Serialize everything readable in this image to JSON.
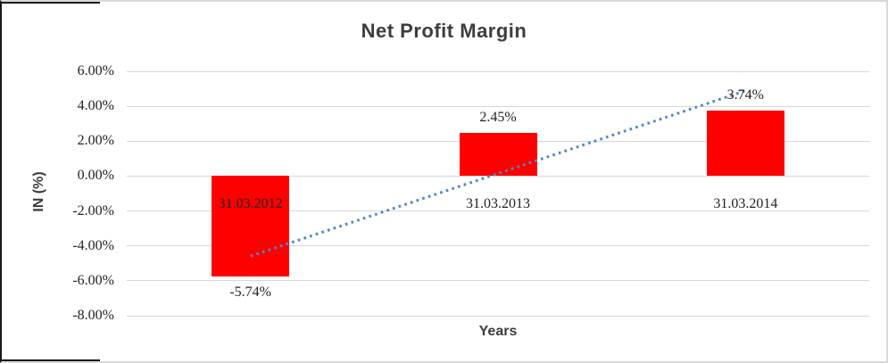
{
  "frame": {
    "background": "#ffffff",
    "border_color": "#d9d9d9",
    "left_edge_color": "#1a1a1a"
  },
  "chart_data": {
    "type": "bar",
    "title": "Net Profit Margin",
    "xlabel": "Years",
    "ylabel": "IN (%)",
    "categories": [
      "31.03.2012",
      "31.03.2013",
      "31.03.2014"
    ],
    "values": [
      -5.74,
      2.45,
      3.74
    ],
    "value_labels": [
      "-5.74%",
      "2.45%",
      "3.74%"
    ],
    "ylim": [
      -8,
      6
    ],
    "yticks": [
      {
        "label": "6.00%",
        "value": 6
      },
      {
        "label": "4.00%",
        "value": 4
      },
      {
        "label": "2.00%",
        "value": 2
      },
      {
        "label": "0.00%",
        "value": 0
      },
      {
        "label": "-2.00%",
        "value": -2
      },
      {
        "label": "-4.00%",
        "value": -4
      },
      {
        "label": "-6.00%",
        "value": -6
      },
      {
        "label": "-8.00%",
        "value": -8
      }
    ],
    "grid": true,
    "legend": false,
    "bar_color": "#ff0000",
    "label_color": "#212121",
    "title_color": "#3d3d3d",
    "gridline_color": "#d6d6d6",
    "trendline": {
      "type": "linear",
      "style": "dotted",
      "color": "#4f86c6",
      "spans": "first-to-last-category",
      "fitted_end_values_percent": [
        -4.59,
        4.89
      ]
    }
  }
}
